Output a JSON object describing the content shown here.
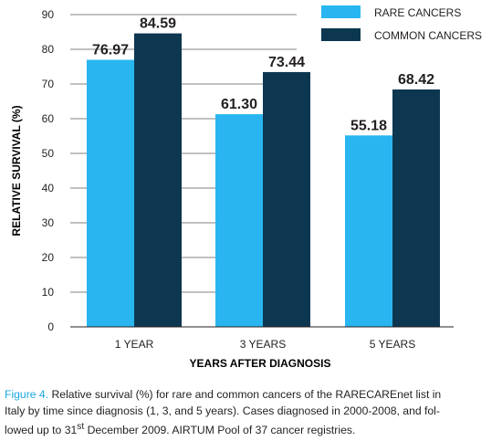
{
  "colors": {
    "rare": "#29b6f0",
    "common": "#0d3750",
    "grid": "#808080",
    "caption_label": "#1ba8e0"
  },
  "chart_data": {
    "type": "bar",
    "categories": [
      "1 YEAR",
      "3 YEARS",
      "5 YEARS"
    ],
    "series": [
      {
        "name": "RARE CANCERS",
        "values": [
          76.97,
          61.3,
          55.18
        ],
        "labels": [
          "76.97",
          "61.30",
          "55.18"
        ]
      },
      {
        "name": "COMMON CANCERS",
        "values": [
          84.59,
          73.44,
          68.42
        ],
        "labels": [
          "84.59",
          "73.44",
          "68.42"
        ]
      }
    ],
    "xlabel": "YEARS AFTER DIAGNOSIS",
    "ylabel": "RELATIVE SURVIVAL (%)",
    "ylim": [
      0,
      90
    ],
    "yticks": [
      "0",
      "10",
      "20",
      "30",
      "40",
      "50",
      "60",
      "70",
      "80",
      "90"
    ],
    "grid": true,
    "legend_position": "top-right"
  },
  "caption": {
    "label": "Figure 4.",
    "line1": " Relative survival (%) for rare and common cancers of the RARECAREnet list in",
    "line2": "Italy by time since diagnosis (1, 3, and 5 years). Cases diagnosed in 2000-2008, and fol-",
    "line3_a": "lowed up to 31",
    "line3_sup": "st",
    "line3_b": " December 2009. AIRTUM Pool of 37 cancer registries."
  }
}
